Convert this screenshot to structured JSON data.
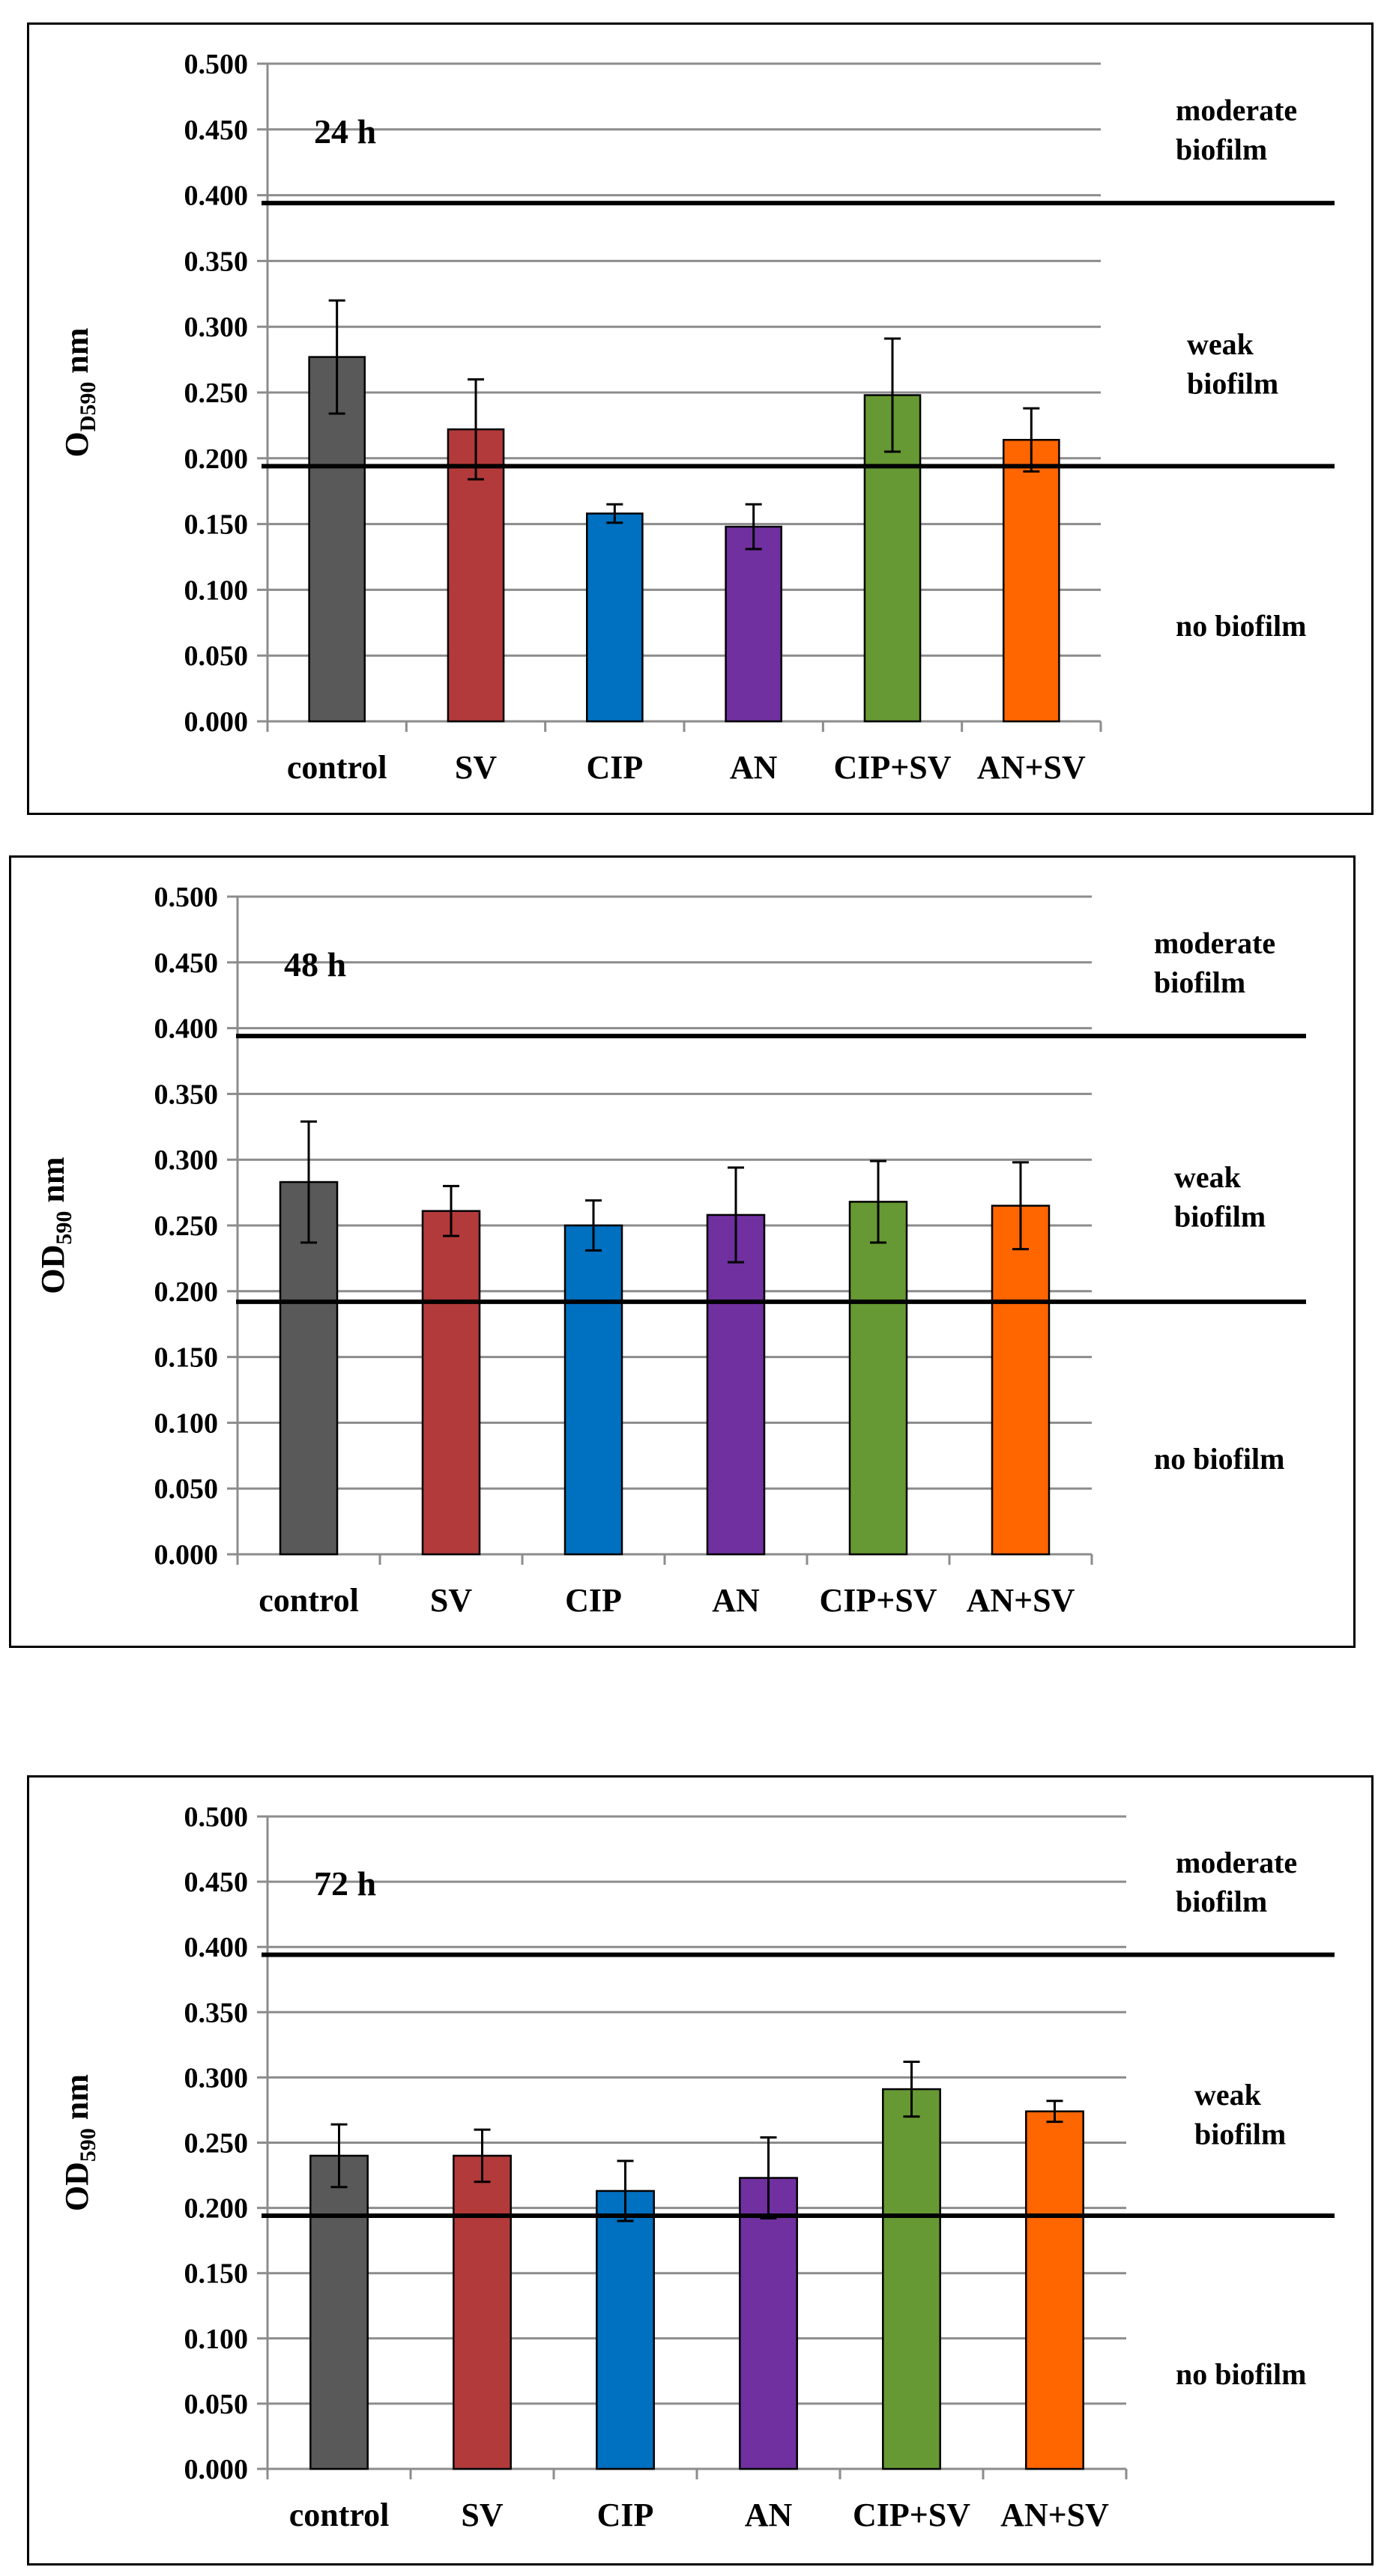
{
  "chart_data": [
    {
      "type": "bar",
      "title": "24 h",
      "ylabel": {
        "main": "O",
        "sub": "D590",
        "unit": " nm"
      },
      "categories": [
        "control",
        "SV",
        "CIP",
        "AN",
        "CIP+SV",
        "AN+SV"
      ],
      "values": [
        0.277,
        0.222,
        0.158,
        0.148,
        0.248,
        0.214
      ],
      "errors": [
        0.043,
        0.038,
        0.007,
        0.017,
        0.043,
        0.024
      ],
      "colors": [
        "#595959",
        "#b33a3a",
        "#0070c0",
        "#7030a0",
        "#669933",
        "#ff6600"
      ],
      "ylim": [
        0,
        0.5
      ],
      "yticks": [
        "0.000",
        "0.050",
        "0.100",
        "0.150",
        "0.200",
        "0.250",
        "0.300",
        "0.350",
        "0.400",
        "0.450",
        "0.500"
      ],
      "thresholds": [
        0.394,
        0.194
      ],
      "zones": [
        {
          "line1": "moderate",
          "line2": "biofilm"
        },
        {
          "line1": "weak",
          "line2": "biofilm"
        },
        {
          "line1": "no biofilm",
          "line2": ""
        }
      ]
    },
    {
      "type": "bar",
      "title": "48 h",
      "ylabel": {
        "main": "OD",
        "sub": "590",
        "unit": " nm"
      },
      "categories": [
        "control",
        "SV",
        "CIP",
        "AN",
        "CIP+SV",
        "AN+SV"
      ],
      "values": [
        0.283,
        0.261,
        0.25,
        0.258,
        0.268,
        0.265
      ],
      "errors": [
        0.046,
        0.019,
        0.019,
        0.036,
        0.031,
        0.033
      ],
      "colors": [
        "#595959",
        "#b33a3a",
        "#0070c0",
        "#7030a0",
        "#669933",
        "#ff6600"
      ],
      "ylim": [
        0,
        0.5
      ],
      "yticks": [
        "0.000",
        "0.050",
        "0.100",
        "0.150",
        "0.200",
        "0.250",
        "0.300",
        "0.350",
        "0.400",
        "0.450",
        "0.500"
      ],
      "thresholds": [
        0.394,
        0.192
      ],
      "zones": [
        {
          "line1": "moderate",
          "line2": "biofilm"
        },
        {
          "line1": "weak",
          "line2": "biofilm"
        },
        {
          "line1": "no biofilm",
          "line2": ""
        }
      ]
    },
    {
      "type": "bar",
      "title": "72 h",
      "ylabel": {
        "main": "OD",
        "sub": "590",
        "unit": " nm"
      },
      "categories": [
        "control",
        "SV",
        "CIP",
        "AN",
        "CIP+SV",
        "AN+SV"
      ],
      "values": [
        0.24,
        0.24,
        0.213,
        0.223,
        0.291,
        0.274
      ],
      "errors": [
        0.024,
        0.02,
        0.023,
        0.031,
        0.021,
        0.008
      ],
      "colors": [
        "#595959",
        "#b33a3a",
        "#0070c0",
        "#7030a0",
        "#669933",
        "#ff6600"
      ],
      "ylim": [
        0,
        0.5
      ],
      "yticks": [
        "0.000",
        "0.050",
        "0.100",
        "0.150",
        "0.200",
        "0.250",
        "0.300",
        "0.350",
        "0.400",
        "0.450",
        "0.500"
      ],
      "thresholds": [
        0.394,
        0.194
      ],
      "zones": [
        {
          "line1": "moderate",
          "line2": "biofilm"
        },
        {
          "line1": "weak",
          "line2": "biofilm"
        },
        {
          "line1": "no biofilm",
          "line2": ""
        }
      ]
    }
  ]
}
